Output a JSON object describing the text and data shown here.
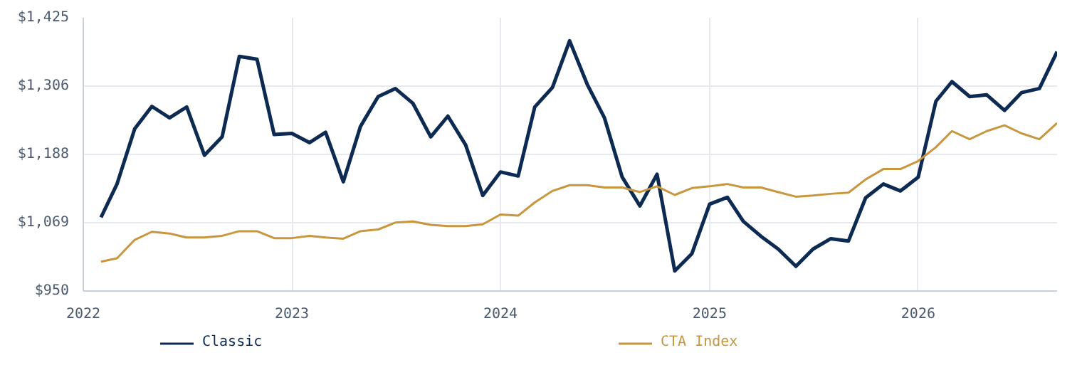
{
  "chart_data": {
    "type": "line",
    "x": [
      "2022-02",
      "2022-03",
      "2022-04",
      "2022-05",
      "2022-06",
      "2022-07",
      "2022-08",
      "2022-09",
      "2022-10",
      "2022-11",
      "2022-12",
      "2023-01",
      "2023-02",
      "2023-03",
      "2023-04",
      "2023-05",
      "2023-06",
      "2023-07",
      "2023-08",
      "2023-09",
      "2023-10",
      "2023-11",
      "2023-12",
      "2024-01",
      "2024-02",
      "2024-03",
      "2024-04",
      "2024-05",
      "2024-06",
      "2024-07",
      "2024-08",
      "2024-09",
      "2024-10",
      "2024-11",
      "2024-12",
      "2025-01",
      "2025-02",
      "2025-03",
      "2025-04",
      "2025-05",
      "2025-06",
      "2025-07",
      "2025-08",
      "2025-09",
      "2025-10",
      "2025-11",
      "2025-12",
      "2026-01",
      "2026-02",
      "2026-03",
      "2026-04",
      "2026-05",
      "2026-06",
      "2026-07",
      "2026-08",
      "2026-09"
    ],
    "series": [
      {
        "name": "Classic",
        "color": "#0d2b52",
        "values": [
          1078,
          1136,
          1232,
          1271,
          1251,
          1270,
          1186,
          1218,
          1358,
          1353,
          1222,
          1224,
          1208,
          1226,
          1140,
          1236,
          1288,
          1302,
          1276,
          1218,
          1254,
          1204,
          1116,
          1157,
          1150,
          1270,
          1304,
          1385,
          1309,
          1251,
          1148,
          1098,
          1153,
          985,
          1015,
          1101,
          1113,
          1071,
          1045,
          1023,
          993,
          1023,
          1041,
          1037,
          1112,
          1136,
          1124,
          1148,
          1280,
          1314,
          1288,
          1291,
          1264,
          1295,
          1302,
          1366
        ]
      },
      {
        "name": "CTA Index",
        "color": "#c8963e",
        "values": [
          1001,
          1007,
          1039,
          1053,
          1050,
          1043,
          1043,
          1046,
          1054,
          1054,
          1042,
          1042,
          1046,
          1043,
          1041,
          1054,
          1057,
          1069,
          1071,
          1065,
          1063,
          1063,
          1066,
          1083,
          1081,
          1104,
          1124,
          1134,
          1134,
          1130,
          1130,
          1122,
          1132,
          1117,
          1129,
          1132,
          1136,
          1130,
          1130,
          1122,
          1114,
          1116,
          1119,
          1121,
          1144,
          1162,
          1162,
          1176,
          1200,
          1228,
          1214,
          1228,
          1238,
          1224,
          1214,
          1242
        ]
      }
    ],
    "xlim": [
      "2022-01-01",
      "2026-09-01"
    ],
    "xticks": [
      {
        "value": "2022",
        "label": "2022"
      },
      {
        "value": "2023",
        "label": "2023"
      },
      {
        "value": "2024",
        "label": "2024"
      },
      {
        "value": "2025",
        "label": "2025"
      },
      {
        "value": "2026",
        "label": "2026"
      }
    ],
    "ylim": [
      950,
      1425
    ],
    "yticks": [
      {
        "value": 950,
        "label": "$950"
      },
      {
        "value": 1069,
        "label": "$1,069"
      },
      {
        "value": 1188,
        "label": "$1,188"
      },
      {
        "value": 1306,
        "label": "$1,306"
      },
      {
        "value": 1425,
        "label": "$1,425"
      }
    ],
    "grid": true,
    "legend": "bottom",
    "marker": "none",
    "line_style": "solid"
  }
}
